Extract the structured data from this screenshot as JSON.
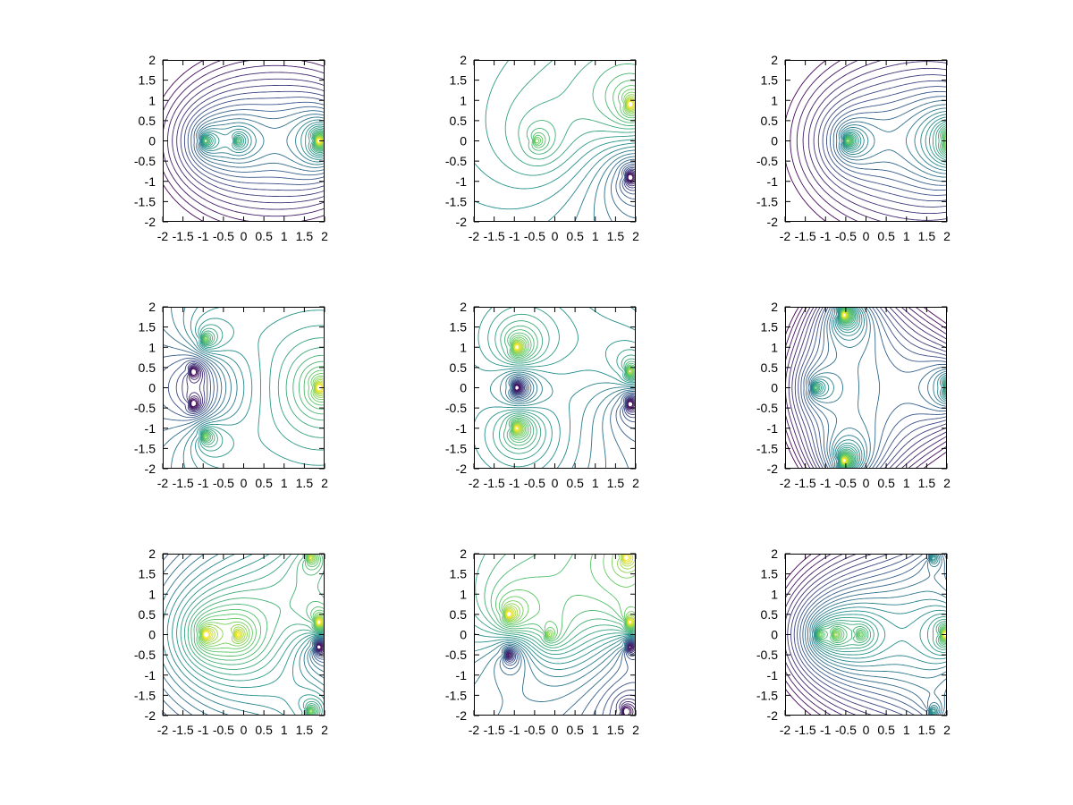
{
  "chart_data": [
    {
      "type": "contour",
      "xlim": [
        -2,
        2
      ],
      "ylim": [
        -2,
        2
      ],
      "grid": false,
      "xticks": [
        "-2",
        "-1.5",
        "-1",
        "-0.5",
        "0",
        "0.5",
        "1",
        "1.5",
        "2"
      ],
      "yticks": [
        "-2",
        "-1.5",
        "-1",
        "-0.5",
        "0",
        "0.5",
        "1",
        "1.5",
        "2"
      ],
      "features": [
        {
          "x": 1.8,
          "y": 0,
          "k": 1.0
        },
        {
          "x": -1.0,
          "y": 0,
          "k": 0.6
        },
        {
          "x": -0.2,
          "y": 0,
          "k": 0.4
        }
      ]
    },
    {
      "type": "contour",
      "xlim": [
        -2,
        2
      ],
      "ylim": [
        -2,
        2
      ],
      "grid": false,
      "xticks": [
        "-2",
        "-1.5",
        "-1",
        "-0.5",
        "0",
        "0.5",
        "1",
        "1.5",
        "2"
      ],
      "yticks": [
        "-2",
        "-1.5",
        "-1",
        "-0.5",
        "0",
        "0.5",
        "1",
        "1.5",
        "2"
      ],
      "features": [
        {
          "x": 1.8,
          "y": 0.9,
          "k": 1.0
        },
        {
          "x": 1.8,
          "y": -0.9,
          "k": -1.0
        },
        {
          "x": -0.5,
          "y": 0,
          "k": 0.5
        }
      ]
    },
    {
      "type": "contour",
      "xlim": [
        -2,
        2
      ],
      "ylim": [
        -2,
        2
      ],
      "grid": false,
      "xticks": [
        "-2",
        "-1.5",
        "-1",
        "-0.5",
        "0",
        "0.5",
        "1",
        "1.5",
        "2"
      ],
      "yticks": [
        "-2",
        "-1.5",
        "-1",
        "-0.5",
        "0",
        "0.5",
        "1",
        "1.5",
        "2"
      ],
      "features": [
        {
          "x": 2.0,
          "y": 0,
          "k": 1.0
        },
        {
          "x": -0.5,
          "y": 0,
          "k": 0.6
        }
      ]
    },
    {
      "type": "contour",
      "xlim": [
        -2,
        2
      ],
      "ylim": [
        -2,
        2
      ],
      "grid": false,
      "xticks": [
        "-2",
        "-1.5",
        "-1",
        "-0.5",
        "0",
        "0.5",
        "1",
        "1.5",
        "2"
      ],
      "yticks": [
        "-2",
        "-1.5",
        "-1",
        "-0.5",
        "0",
        "0.5",
        "1",
        "1.5",
        "2"
      ],
      "features": [
        {
          "x": -1.0,
          "y": 1.2,
          "k": 0.8
        },
        {
          "x": -1.0,
          "y": -1.2,
          "k": 0.8
        },
        {
          "x": -1.3,
          "y": 0.4,
          "k": -0.8
        },
        {
          "x": -1.3,
          "y": -0.4,
          "k": -0.8
        },
        {
          "x": 1.8,
          "y": 0,
          "k": 0.9
        }
      ]
    },
    {
      "type": "contour",
      "xlim": [
        -2,
        2
      ],
      "ylim": [
        -2,
        2
      ],
      "grid": false,
      "xticks": [
        "-2",
        "-1.5",
        "-1",
        "-0.5",
        "0",
        "0.5",
        "1",
        "1.5",
        "2"
      ],
      "yticks": [
        "-2",
        "-1.5",
        "-1",
        "-0.5",
        "0",
        "0.5",
        "1",
        "1.5",
        "2"
      ],
      "features": [
        {
          "x": -1.0,
          "y": 1.0,
          "k": 0.8
        },
        {
          "x": -1.0,
          "y": -1.0,
          "k": 0.8
        },
        {
          "x": -1.0,
          "y": 0,
          "k": -0.9
        },
        {
          "x": 1.8,
          "y": 0.4,
          "k": 0.7
        },
        {
          "x": 1.8,
          "y": -0.4,
          "k": -0.7
        }
      ]
    },
    {
      "type": "contour",
      "xlim": [
        -2,
        2
      ],
      "ylim": [
        -2,
        2
      ],
      "grid": false,
      "xticks": [
        "-2",
        "-1.5",
        "-1",
        "-0.5",
        "0",
        "0.5",
        "1",
        "1.5",
        "2"
      ],
      "yticks": [
        "-2",
        "-1.5",
        "-1",
        "-0.5",
        "0",
        "0.5",
        "1",
        "1.5",
        "2"
      ],
      "features": [
        {
          "x": -0.6,
          "y": 1.8,
          "k": 1.0
        },
        {
          "x": -0.6,
          "y": -1.8,
          "k": 1.0
        },
        {
          "x": 2.0,
          "y": 0,
          "k": 1.0
        },
        {
          "x": -1.3,
          "y": 0,
          "k": 0.5
        }
      ]
    },
    {
      "type": "contour",
      "xlim": [
        -2,
        2
      ],
      "ylim": [
        -2,
        2
      ],
      "grid": false,
      "xticks": [
        "-2",
        "-1.5",
        "-1",
        "-0.5",
        "0",
        "0.5",
        "1",
        "1.5",
        "2"
      ],
      "yticks": [
        "-2",
        "-1.5",
        "-1",
        "-0.5",
        "0",
        "0.5",
        "1",
        "1.5",
        "2"
      ],
      "features": [
        {
          "x": -1.0,
          "y": 0,
          "k": 0.6
        },
        {
          "x": -0.2,
          "y": 0,
          "k": 0.4
        },
        {
          "x": 1.8,
          "y": 0.3,
          "k": 0.8
        },
        {
          "x": 1.8,
          "y": -0.3,
          "k": -0.8
        },
        {
          "x": 1.6,
          "y": 1.9,
          "k": 0.5
        },
        {
          "x": 1.6,
          "y": -1.9,
          "k": 0.5
        }
      ]
    },
    {
      "type": "contour",
      "xlim": [
        -2,
        2
      ],
      "ylim": [
        -2,
        2
      ],
      "grid": false,
      "xticks": [
        "-2",
        "-1.5",
        "-1",
        "-0.5",
        "0",
        "0.5",
        "1",
        "1.5",
        "2"
      ],
      "yticks": [
        "-2",
        "-1.5",
        "-1",
        "-0.5",
        "0",
        "0.5",
        "1",
        "1.5",
        "2"
      ],
      "features": [
        {
          "x": -1.2,
          "y": 0.5,
          "k": 0.7
        },
        {
          "x": -1.2,
          "y": -0.5,
          "k": -0.7
        },
        {
          "x": -0.2,
          "y": 0,
          "k": 0.4
        },
        {
          "x": 1.8,
          "y": 0.3,
          "k": 0.8
        },
        {
          "x": 1.8,
          "y": -0.3,
          "k": -0.8
        },
        {
          "x": 1.7,
          "y": 1.9,
          "k": 0.5
        },
        {
          "x": 1.7,
          "y": -1.9,
          "k": -0.5
        }
      ]
    },
    {
      "type": "contour",
      "xlim": [
        -2,
        2
      ],
      "ylim": [
        -2,
        2
      ],
      "grid": false,
      "xticks": [
        "-2",
        "-1.5",
        "-1",
        "-0.5",
        "0",
        "0.5",
        "1",
        "1.5",
        "2"
      ],
      "yticks": [
        "-2",
        "-1.5",
        "-1",
        "-0.5",
        "0",
        "0.5",
        "1",
        "1.5",
        "2"
      ],
      "features": [
        {
          "x": -1.2,
          "y": 0,
          "k": 0.6
        },
        {
          "x": -0.8,
          "y": 0,
          "k": 0.5
        },
        {
          "x": -0.2,
          "y": 0,
          "k": 0.4
        },
        {
          "x": 1.9,
          "y": 0,
          "k": 1.0
        },
        {
          "x": 1.6,
          "y": 1.9,
          "k": 0.5
        },
        {
          "x": 1.6,
          "y": -1.9,
          "k": 0.5
        }
      ]
    }
  ],
  "colors": {
    "palette": [
      "#440154",
      "#3b528b",
      "#21908c",
      "#5ec962",
      "#fde725"
    ],
    "axis": "#000000"
  }
}
